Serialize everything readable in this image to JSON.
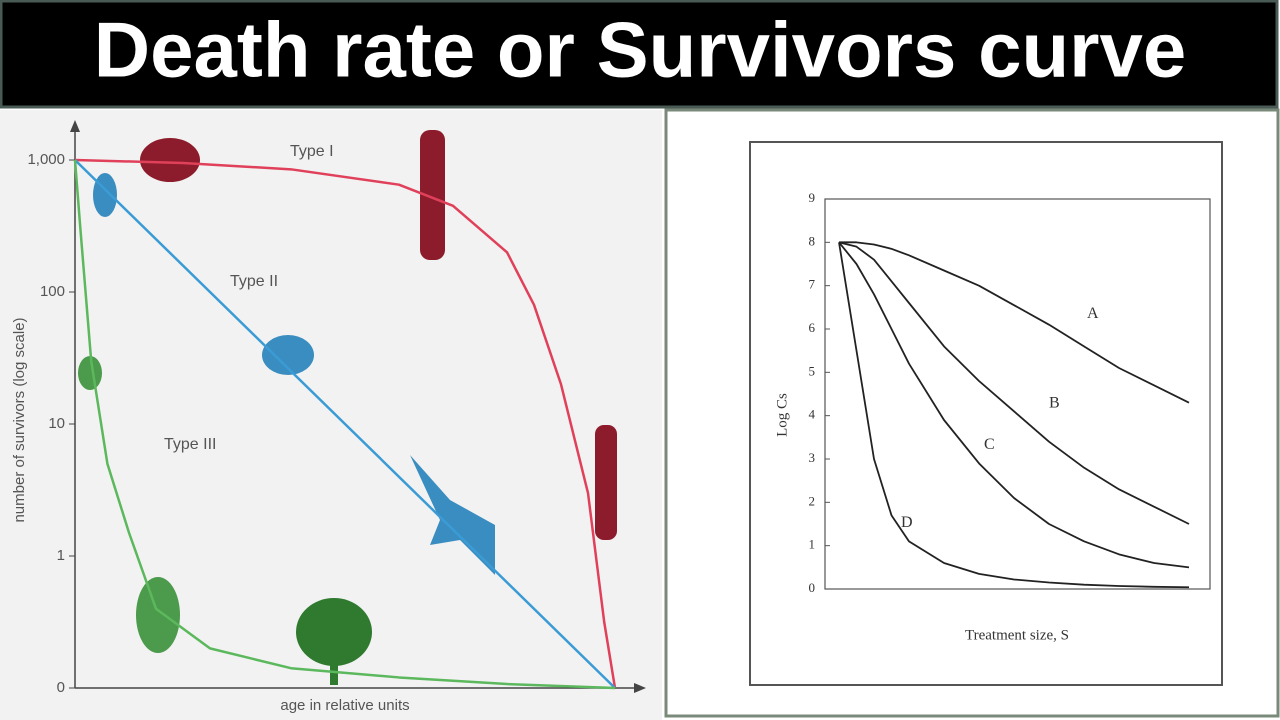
{
  "title": "Death rate or Survivors curve",
  "chart_data": [
    {
      "type": "line",
      "y_label": "number of survivors (log scale)",
      "x_label": "age in relative units",
      "log_scale": true,
      "xlim": [
        0,
        100
      ],
      "yticks": [
        {
          "value": 1000,
          "label": "1,000"
        },
        100,
        10,
        1,
        0
      ],
      "series": [
        {
          "name": "Type I",
          "color": "#e0405a",
          "x": [
            0,
            20,
            40,
            60,
            70,
            80,
            85,
            90,
            95,
            98,
            100
          ],
          "values": [
            1000,
            950,
            850,
            650,
            450,
            200,
            80,
            20,
            3,
            0.5,
            0
          ]
        },
        {
          "name": "Type II",
          "color": "#3a9bd5",
          "x": [
            0,
            25,
            50,
            75,
            100
          ],
          "values": [
            1000,
            100,
            10,
            1,
            0
          ]
        },
        {
          "name": "Type III",
          "color": "#5cb85c",
          "x": [
            0,
            1,
            3,
            6,
            10,
            15,
            25,
            40,
            60,
            80,
            100
          ],
          "values": [
            1000,
            300,
            30,
            5,
            1.5,
            0.6,
            0.3,
            0.15,
            0.08,
            0.03,
            0
          ]
        }
      ]
    },
    {
      "type": "line",
      "y_label": "Log Cs",
      "x_label": "Treatment size, S",
      "xlim": [
        -0.4,
        10.6
      ],
      "ylim": [
        0,
        9
      ],
      "yticks": [
        0,
        1,
        2,
        3,
        4,
        5,
        6,
        7,
        8,
        9
      ],
      "x": [
        0,
        0.5,
        1,
        1.5,
        2,
        3,
        4,
        5,
        6,
        7,
        8,
        9,
        10
      ],
      "series": [
        {
          "name": "A",
          "color": "#222222",
          "values": [
            8,
            8,
            7.95,
            7.85,
            7.7,
            7.35,
            7.0,
            6.55,
            6.1,
            5.6,
            5.1,
            4.7,
            4.3
          ]
        },
        {
          "name": "B",
          "color": "#222222",
          "values": [
            8,
            7.9,
            7.6,
            7.1,
            6.6,
            5.6,
            4.8,
            4.1,
            3.4,
            2.8,
            2.3,
            1.9,
            1.5
          ]
        },
        {
          "name": "C",
          "color": "#222222",
          "values": [
            8,
            7.5,
            6.8,
            6.0,
            5.2,
            3.9,
            2.9,
            2.1,
            1.5,
            1.1,
            0.8,
            0.6,
            0.5
          ]
        },
        {
          "name": "D",
          "color": "#222222",
          "values": [
            8,
            5.5,
            3.0,
            1.7,
            1.1,
            0.6,
            0.35,
            0.22,
            0.15,
            0.1,
            0.07,
            0.05,
            0.04
          ]
        }
      ]
    }
  ]
}
